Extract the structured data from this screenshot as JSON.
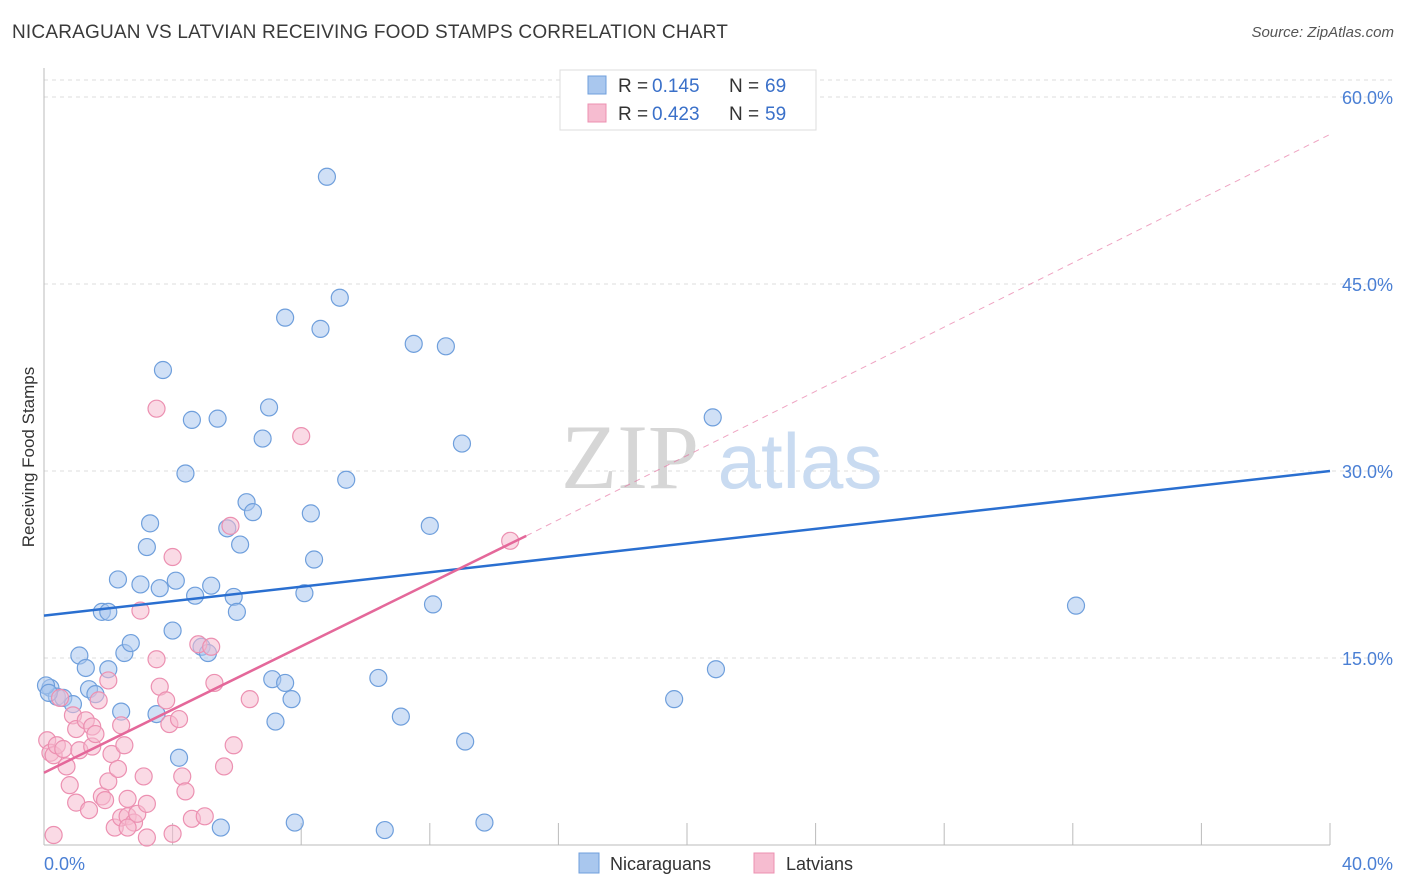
{
  "title": "NICARAGUAN VS LATVIAN RECEIVING FOOD STAMPS CORRELATION CHART",
  "source": "Source: ZipAtlas.com",
  "watermark": {
    "zip": "ZIP",
    "atlas": "atlas"
  },
  "colors": {
    "nicaraguans_fill": "#a9c7ee",
    "nicaraguans_stroke": "#6f9fdc",
    "nicaraguans_line": "#2a6fd0",
    "latvians_fill": "#f6bcd0",
    "latvians_stroke": "#ec90b1",
    "latvians_line": "#e4689a",
    "grid": "#dcdcdc",
    "tick_text": "#4a7fd4"
  },
  "legend": {
    "rows": [
      {
        "r_label": "R = ",
        "r_value": "0.145",
        "n_label": "N = ",
        "n_value": "69"
      },
      {
        "r_label": "R = ",
        "r_value": "0.423",
        "n_label": "N = ",
        "n_value": "59"
      }
    ]
  },
  "chart_data": {
    "type": "scatter",
    "ylabel": "Receiving Food Stamps",
    "xlim": [
      0,
      40
    ],
    "ylim": [
      0,
      60
    ],
    "x_tick_labels": [
      {
        "value": 0,
        "label": "0.0%"
      },
      {
        "value": 40,
        "label": "40.0%"
      }
    ],
    "y_tick_labels": [
      {
        "value": 15,
        "label": "15.0%"
      },
      {
        "value": 30,
        "label": "30.0%"
      },
      {
        "value": 45,
        "label": "45.0%"
      },
      {
        "value": 60,
        "label": "60.0%"
      }
    ],
    "legend_position": "top-center",
    "series": [
      {
        "name": "Nicaraguans",
        "trend": {
          "x": [
            0,
            40
          ],
          "y": [
            18.4,
            30.0
          ],
          "dashed_to": null
        },
        "points": [
          [
            0.2,
            12.6
          ],
          [
            0.4,
            11.9
          ],
          [
            0.6,
            11.8
          ],
          [
            0.9,
            11.3
          ],
          [
            1.1,
            15.2
          ],
          [
            1.3,
            14.2
          ],
          [
            1.4,
            12.5
          ],
          [
            1.6,
            12.1
          ],
          [
            1.8,
            18.7
          ],
          [
            2.0,
            18.7
          ],
          [
            2.0,
            14.1
          ],
          [
            2.3,
            21.3
          ],
          [
            2.4,
            10.7
          ],
          [
            2.5,
            15.4
          ],
          [
            2.7,
            16.2
          ],
          [
            3.0,
            20.9
          ],
          [
            3.2,
            23.9
          ],
          [
            3.3,
            25.8
          ],
          [
            3.5,
            10.5
          ],
          [
            3.6,
            20.6
          ],
          [
            3.7,
            38.1
          ],
          [
            4.0,
            17.2
          ],
          [
            4.1,
            21.2
          ],
          [
            4.2,
            7.0
          ],
          [
            4.4,
            29.8
          ],
          [
            4.6,
            34.1
          ],
          [
            4.7,
            20.0
          ],
          [
            4.9,
            15.9
          ],
          [
            5.1,
            15.4
          ],
          [
            5.2,
            20.8
          ],
          [
            5.4,
            34.2
          ],
          [
            5.5,
            1.4
          ],
          [
            5.7,
            25.4
          ],
          [
            5.9,
            19.9
          ],
          [
            6.0,
            18.7
          ],
          [
            6.1,
            24.1
          ],
          [
            6.3,
            27.5
          ],
          [
            6.5,
            26.7
          ],
          [
            6.8,
            32.6
          ],
          [
            7.0,
            35.1
          ],
          [
            7.1,
            13.3
          ],
          [
            7.2,
            9.9
          ],
          [
            7.5,
            13.0
          ],
          [
            7.5,
            42.3
          ],
          [
            7.7,
            11.7
          ],
          [
            7.8,
            1.8
          ],
          [
            8.1,
            20.2
          ],
          [
            8.3,
            26.6
          ],
          [
            8.4,
            22.9
          ],
          [
            8.6,
            41.4
          ],
          [
            8.8,
            53.6
          ],
          [
            9.2,
            43.9
          ],
          [
            9.4,
            29.3
          ],
          [
            10.4,
            13.4
          ],
          [
            10.6,
            1.2
          ],
          [
            11.1,
            10.3
          ],
          [
            11.5,
            40.2
          ],
          [
            12.0,
            25.6
          ],
          [
            12.1,
            19.3
          ],
          [
            12.5,
            40.0
          ],
          [
            13.0,
            32.2
          ],
          [
            13.1,
            8.3
          ],
          [
            13.7,
            1.8
          ],
          [
            19.6,
            11.7
          ],
          [
            20.8,
            34.3
          ],
          [
            20.9,
            14.1
          ],
          [
            32.1,
            19.2
          ],
          [
            0.05,
            12.8
          ],
          [
            0.15,
            12.2
          ]
        ]
      },
      {
        "name": "Latvians",
        "trend": {
          "x": [
            0,
            15
          ],
          "y": [
            5.8,
            24.8
          ],
          "dashed_to": {
            "x": 40,
            "y": 57.0
          }
        },
        "points": [
          [
            0.1,
            8.4
          ],
          [
            0.2,
            7.4
          ],
          [
            0.3,
            7.2
          ],
          [
            0.4,
            8.0
          ],
          [
            0.5,
            11.8
          ],
          [
            0.6,
            7.7
          ],
          [
            0.7,
            6.3
          ],
          [
            0.8,
            4.8
          ],
          [
            0.9,
            10.4
          ],
          [
            1.0,
            3.4
          ],
          [
            1.0,
            9.3
          ],
          [
            1.1,
            7.6
          ],
          [
            1.3,
            10.0
          ],
          [
            1.4,
            2.8
          ],
          [
            1.5,
            9.5
          ],
          [
            1.5,
            7.9
          ],
          [
            1.6,
            8.9
          ],
          [
            1.7,
            11.6
          ],
          [
            1.8,
            3.9
          ],
          [
            1.9,
            3.6
          ],
          [
            2.0,
            13.2
          ],
          [
            2.0,
            5.1
          ],
          [
            2.1,
            7.3
          ],
          [
            2.2,
            1.4
          ],
          [
            2.3,
            6.1
          ],
          [
            2.4,
            2.2
          ],
          [
            2.4,
            9.6
          ],
          [
            2.5,
            8.0
          ],
          [
            2.6,
            2.3
          ],
          [
            2.6,
            3.7
          ],
          [
            2.8,
            1.8
          ],
          [
            2.9,
            2.5
          ],
          [
            3.0,
            18.8
          ],
          [
            3.1,
            5.5
          ],
          [
            3.2,
            3.3
          ],
          [
            3.5,
            14.9
          ],
          [
            3.6,
            12.7
          ],
          [
            3.8,
            11.6
          ],
          [
            3.9,
            9.7
          ],
          [
            4.0,
            23.1
          ],
          [
            4.2,
            10.1
          ],
          [
            4.3,
            5.5
          ],
          [
            4.4,
            4.3
          ],
          [
            4.6,
            2.1
          ],
          [
            4.8,
            16.1
          ],
          [
            5.0,
            2.3
          ],
          [
            5.2,
            15.9
          ],
          [
            5.3,
            13.0
          ],
          [
            5.6,
            6.3
          ],
          [
            5.8,
            25.6
          ],
          [
            5.9,
            8.0
          ],
          [
            6.4,
            11.7
          ],
          [
            3.5,
            35.0
          ],
          [
            8.0,
            32.8
          ],
          [
            14.5,
            24.4
          ],
          [
            3.2,
            0.6
          ],
          [
            4.0,
            0.9
          ],
          [
            2.6,
            1.4
          ],
          [
            0.3,
            0.8
          ]
        ]
      }
    ],
    "bottom_legend": [
      "Nicaraguans",
      "Latvians"
    ]
  }
}
